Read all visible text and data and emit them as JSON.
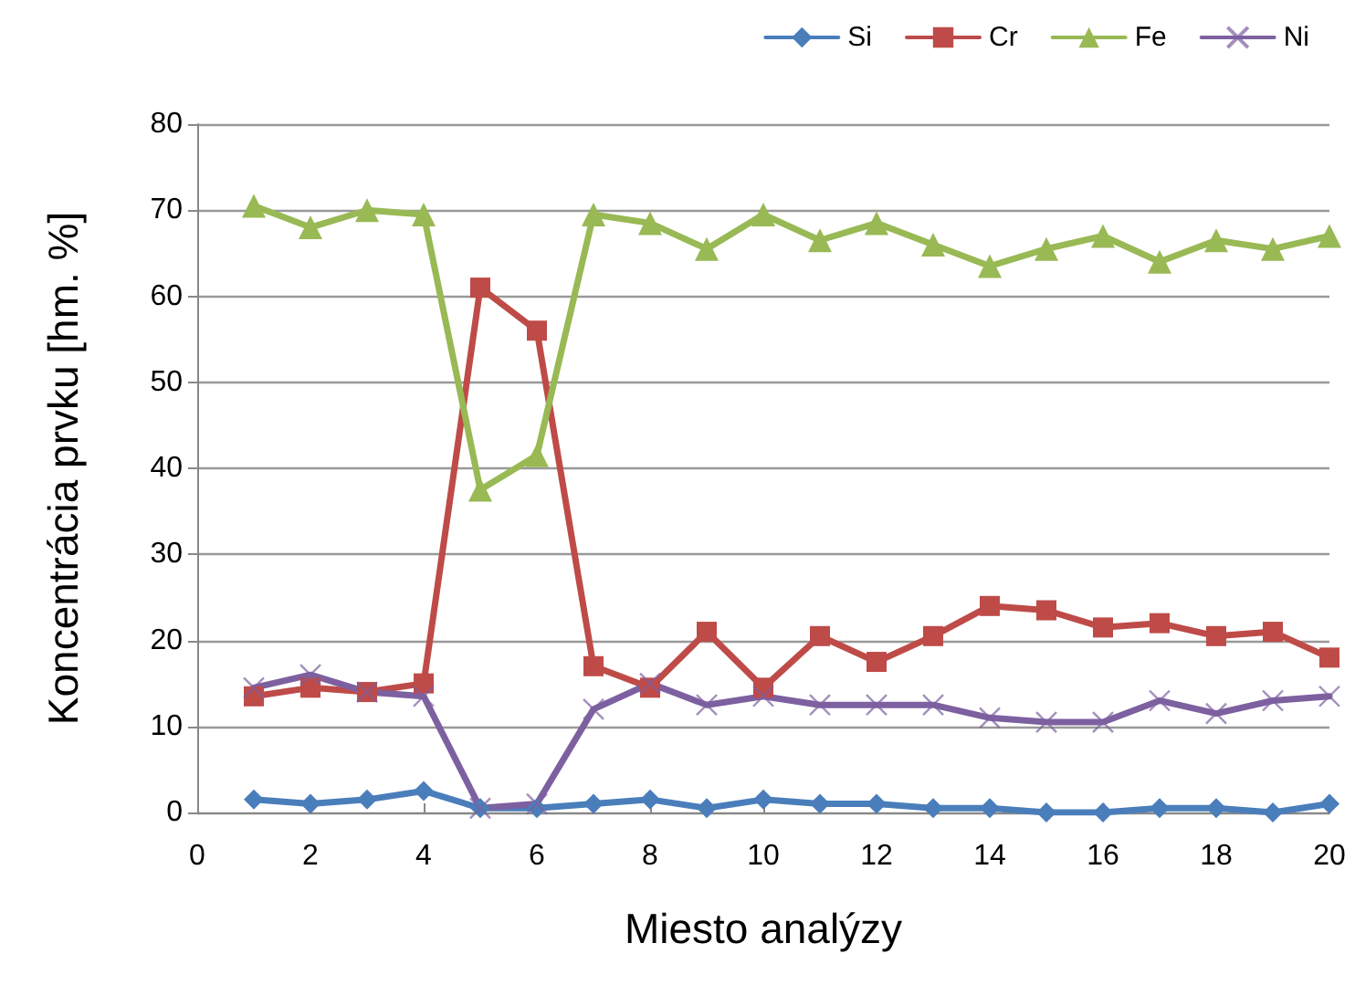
{
  "chart_data": {
    "type": "line",
    "xlabel": "Miesto analýzy",
    "ylabel": "Koncentrácia prvku [hm. %]",
    "x": [
      1,
      2,
      3,
      4,
      5,
      6,
      7,
      8,
      9,
      10,
      11,
      12,
      13,
      14,
      15,
      16,
      17,
      18,
      19,
      20
    ],
    "xlim": [
      0,
      20
    ],
    "xticks": [
      0,
      2,
      4,
      6,
      8,
      10,
      12,
      14,
      16,
      18,
      20
    ],
    "ylim": [
      0,
      80
    ],
    "yticks": [
      0,
      10,
      20,
      30,
      40,
      50,
      60,
      70,
      80
    ],
    "grid": "y",
    "legend": "top right",
    "series": [
      {
        "name": "Si",
        "color": "#4a7ebb",
        "marker": "diamond",
        "values": [
          1.5,
          1,
          1.5,
          2.5,
          0.5,
          0.5,
          1,
          1.5,
          0.5,
          1.5,
          1,
          1,
          0.5,
          0.5,
          0,
          0,
          0.5,
          0.5,
          0,
          1
        ]
      },
      {
        "name": "Cr",
        "color": "#be4b48",
        "marker": "square",
        "values": [
          13.5,
          14.5,
          14,
          15,
          61,
          56,
          17,
          14.5,
          21,
          14.5,
          20.5,
          17.5,
          20.5,
          24,
          23.5,
          21.5,
          22,
          20.5,
          21,
          18
        ]
      },
      {
        "name": "Fe",
        "color": "#98b954",
        "marker": "triangle",
        "values": [
          70.5,
          68,
          70,
          69.5,
          37.5,
          41.5,
          69.5,
          68.5,
          65.5,
          69.5,
          66.5,
          68.5,
          66,
          63.5,
          65.5,
          67,
          64,
          66.5,
          65.5,
          67
        ]
      },
      {
        "name": "Ni",
        "color": "#7d60a0",
        "marker": "cross",
        "values": [
          14.5,
          16,
          14,
          13.5,
          0.5,
          1,
          12,
          15,
          12.5,
          13.5,
          12.5,
          12.5,
          12.5,
          11,
          10.5,
          10.5,
          13,
          11.5,
          13,
          13.5
        ]
      }
    ]
  }
}
